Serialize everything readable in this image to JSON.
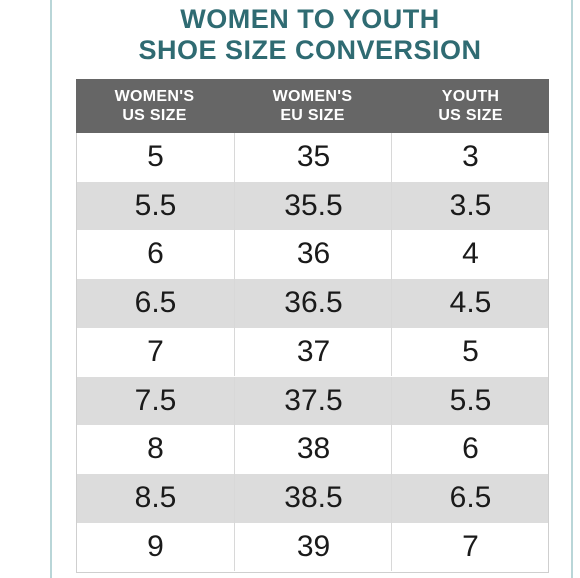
{
  "title": {
    "line1": "WOMEN TO YOUTH",
    "line2": "SHOE SIZE CONVERSION"
  },
  "table": {
    "headers": [
      {
        "line1": "WOMEN'S",
        "line2": "US SIZE"
      },
      {
        "line1": "WOMEN'S",
        "line2": "EU SIZE"
      },
      {
        "line1": "YOUTH",
        "line2": "US SIZE"
      }
    ],
    "rows": [
      [
        "5",
        "35",
        "3"
      ],
      [
        "5.5",
        "35.5",
        "3.5"
      ],
      [
        "6",
        "36",
        "4"
      ],
      [
        "6.5",
        "36.5",
        "4.5"
      ],
      [
        "7",
        "37",
        "5"
      ],
      [
        "7.5",
        "37.5",
        "5.5"
      ],
      [
        "8",
        "38",
        "6"
      ],
      [
        "8.5",
        "38.5",
        "6.5"
      ],
      [
        "9",
        "39",
        "7"
      ]
    ]
  },
  "colors": {
    "title": "#2f6b72",
    "header_bg": "#666666",
    "shaded_row": "#dcdcdc",
    "frame_line": "#b9d6d8"
  }
}
